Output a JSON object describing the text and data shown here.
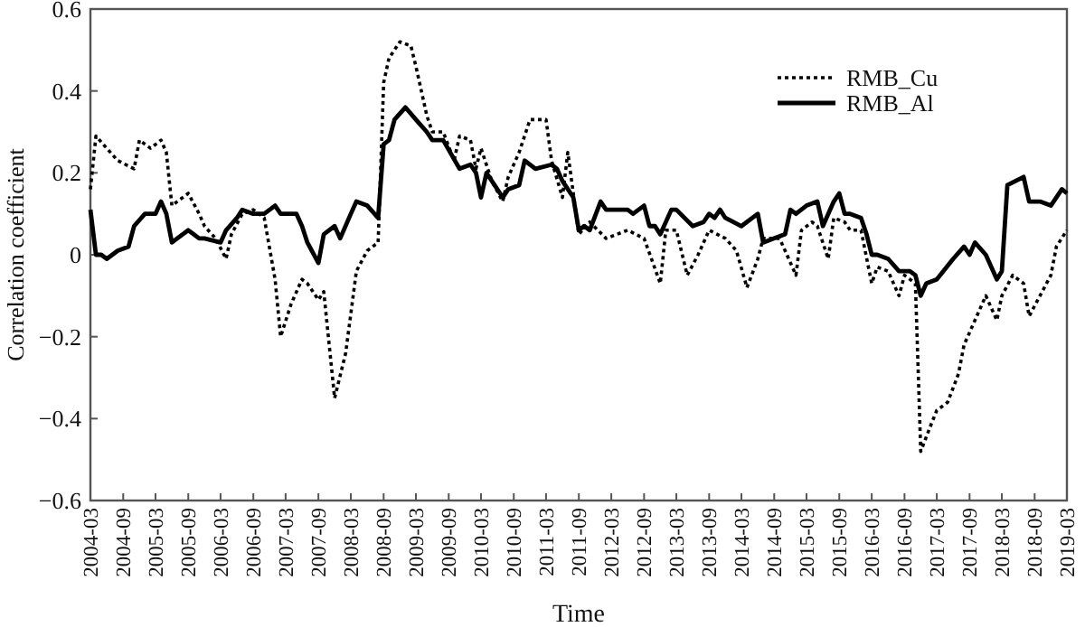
{
  "chart_data": {
    "type": "line",
    "xlabel": "Time",
    "ylabel": "Correlation coefficient",
    "xlim": [
      "2004-03",
      "2019-03"
    ],
    "ylim": [
      -0.6,
      0.6
    ],
    "xticks": [
      "2004-03",
      "2004-09",
      "2005-03",
      "2005-09",
      "2006-03",
      "2006-09",
      "2007-03",
      "2007-09",
      "2008-03",
      "2008-09",
      "2009-03",
      "2009-09",
      "2010-03",
      "2010-09",
      "2011-03",
      "2011-09",
      "2012-03",
      "2012-09",
      "2013-03",
      "2013-09",
      "2014-03",
      "2014-09",
      "2015-03",
      "2015-09",
      "2016-03",
      "2016-09",
      "2017-03",
      "2017-09",
      "2018-03",
      "2018-09",
      "2019-03"
    ],
    "yticks": [
      {
        "value": -0.6,
        "label": "−0.6"
      },
      {
        "value": -0.4,
        "label": "−0.4"
      },
      {
        "value": -0.2,
        "label": "−0.2"
      },
      0,
      0.2,
      0.4,
      0.6
    ],
    "grid": false,
    "legend": "top right",
    "marker": "none",
    "series": [
      {
        "name": "RMB_Cu",
        "color": "#000000",
        "line_style": "dotted",
        "x": [
          "2004-03",
          "2004-04",
          "2004-06",
          "2004-08",
          "2004-11",
          "2004-12",
          "2005-02",
          "2005-04",
          "2005-05",
          "2005-06",
          "2005-07",
          "2005-09",
          "2005-11",
          "2005-12",
          "2006-02",
          "2006-04",
          "2006-05",
          "2006-07",
          "2006-09",
          "2006-11",
          "2007-01",
          "2007-02",
          "2007-04",
          "2007-06",
          "2007-07",
          "2007-09",
          "2007-10",
          "2007-12",
          "2008-02",
          "2008-04",
          "2008-06",
          "2008-08",
          "2008-09",
          "2008-10",
          "2008-12",
          "2009-02",
          "2009-03",
          "2009-05",
          "2009-06",
          "2009-08",
          "2009-10",
          "2009-11",
          "2010-01",
          "2010-02",
          "2010-03",
          "2010-05",
          "2010-07",
          "2010-08",
          "2010-10",
          "2010-12",
          "2011-03",
          "2011-04",
          "2011-06",
          "2011-07",
          "2011-08",
          "2011-09",
          "2011-11",
          "2012-02",
          "2012-06",
          "2012-09",
          "2012-12",
          "2013-01",
          "2013-03",
          "2013-05",
          "2013-07",
          "2013-09",
          "2013-12",
          "2014-02",
          "2014-04",
          "2014-06",
          "2014-07",
          "2014-10",
          "2014-11",
          "2015-01",
          "2015-02",
          "2015-04",
          "2015-05",
          "2015-07",
          "2015-08",
          "2015-10",
          "2015-11",
          "2016-01",
          "2016-03",
          "2016-04",
          "2016-06",
          "2016-08",
          "2016-09",
          "2016-11",
          "2016-12",
          "2017-02",
          "2017-03",
          "2017-05",
          "2017-07",
          "2017-08",
          "2017-10",
          "2017-12",
          "2018-02",
          "2018-03",
          "2018-05",
          "2018-07",
          "2018-08",
          "2018-10",
          "2018-12",
          "2019-01",
          "2019-03"
        ],
        "values": [
          0.16,
          0.29,
          0.26,
          0.23,
          0.21,
          0.28,
          0.26,
          0.28,
          0.25,
          0.12,
          0.13,
          0.15,
          0.1,
          0.07,
          0.04,
          -0.01,
          0.05,
          0.1,
          0.11,
          0.09,
          -0.06,
          -0.2,
          -0.12,
          -0.06,
          -0.07,
          -0.11,
          -0.09,
          -0.35,
          -0.24,
          -0.04,
          0.01,
          0.03,
          0.42,
          0.48,
          0.52,
          0.51,
          0.46,
          0.34,
          0.3,
          0.3,
          0.23,
          0.29,
          0.28,
          0.21,
          0.26,
          0.18,
          0.13,
          0.19,
          0.25,
          0.33,
          0.33,
          0.23,
          0.14,
          0.25,
          0.15,
          0.05,
          0.08,
          0.04,
          0.06,
          0.04,
          -0.07,
          0.06,
          0.06,
          -0.05,
          0.0,
          0.06,
          0.04,
          0.01,
          -0.08,
          -0.01,
          0.04,
          0.04,
          0.01,
          -0.05,
          0.06,
          0.08,
          0.07,
          -0.01,
          0.09,
          0.08,
          0.06,
          0.06,
          -0.07,
          -0.03,
          -0.04,
          -0.1,
          -0.05,
          -0.07,
          -0.48,
          -0.41,
          -0.38,
          -0.36,
          -0.29,
          -0.22,
          -0.16,
          -0.1,
          -0.16,
          -0.1,
          -0.05,
          -0.07,
          -0.15,
          -0.1,
          -0.05,
          0.02,
          0.06
        ]
      },
      {
        "name": "RMB_Al",
        "color": "#000000",
        "line_style": "solid",
        "x": [
          "2004-03",
          "2004-04",
          "2004-05",
          "2004-06",
          "2004-08",
          "2004-10",
          "2004-11",
          "2005-01",
          "2005-03",
          "2005-04",
          "2005-05",
          "2005-06",
          "2005-07",
          "2005-09",
          "2005-11",
          "2005-12",
          "2006-03",
          "2006-04",
          "2006-06",
          "2006-07",
          "2006-09",
          "2006-11",
          "2007-01",
          "2007-02",
          "2007-05",
          "2007-06",
          "2007-07",
          "2007-09",
          "2007-10",
          "2007-12",
          "2008-01",
          "2008-03",
          "2008-04",
          "2008-06",
          "2008-08",
          "2008-09",
          "2008-10",
          "2008-11",
          "2009-01",
          "2009-03",
          "2009-05",
          "2009-06",
          "2009-08",
          "2009-11",
          "2010-01",
          "2010-02",
          "2010-03",
          "2010-04",
          "2010-07",
          "2010-08",
          "2010-10",
          "2010-11",
          "2011-01",
          "2011-04",
          "2011-05",
          "2011-06",
          "2011-08",
          "2011-09",
          "2011-10",
          "2011-11",
          "2012-01",
          "2012-02",
          "2012-06",
          "2012-07",
          "2012-09",
          "2012-10",
          "2012-11",
          "2012-12",
          "2013-02",
          "2013-03",
          "2013-06",
          "2013-08",
          "2013-09",
          "2013-10",
          "2013-11",
          "2013-12",
          "2014-03",
          "2014-06",
          "2014-07",
          "2014-09",
          "2014-11",
          "2014-12",
          "2015-01",
          "2015-03",
          "2015-05",
          "2015-06",
          "2015-08",
          "2015-09",
          "2015-10",
          "2015-11",
          "2016-01",
          "2016-02",
          "2016-03",
          "2016-04",
          "2016-06",
          "2016-08",
          "2016-10",
          "2016-11",
          "2016-12",
          "2017-01",
          "2017-03",
          "2017-06",
          "2017-08",
          "2017-09",
          "2017-10",
          "2017-12",
          "2018-02",
          "2018-03",
          "2018-04",
          "2018-07",
          "2018-08",
          "2018-10",
          "2018-12",
          "2019-02",
          "2019-03"
        ],
        "values": [
          0.11,
          0.0,
          0.0,
          -0.01,
          0.01,
          0.02,
          0.07,
          0.1,
          0.1,
          0.13,
          0.1,
          0.03,
          0.04,
          0.06,
          0.04,
          0.04,
          0.03,
          0.06,
          0.09,
          0.11,
          0.1,
          0.1,
          0.12,
          0.1,
          0.1,
          0.07,
          0.03,
          -0.02,
          0.05,
          0.07,
          0.04,
          0.1,
          0.13,
          0.12,
          0.09,
          0.27,
          0.28,
          0.33,
          0.36,
          0.33,
          0.3,
          0.28,
          0.28,
          0.21,
          0.22,
          0.2,
          0.14,
          0.2,
          0.14,
          0.16,
          0.17,
          0.23,
          0.21,
          0.22,
          0.21,
          0.18,
          0.14,
          0.06,
          0.07,
          0.06,
          0.13,
          0.11,
          0.11,
          0.1,
          0.12,
          0.07,
          0.07,
          0.05,
          0.11,
          0.11,
          0.07,
          0.08,
          0.1,
          0.09,
          0.11,
          0.09,
          0.07,
          0.1,
          0.03,
          0.04,
          0.05,
          0.11,
          0.1,
          0.12,
          0.13,
          0.07,
          0.13,
          0.15,
          0.1,
          0.1,
          0.09,
          0.05,
          0.0,
          0.0,
          -0.01,
          -0.04,
          -0.04,
          -0.05,
          -0.1,
          -0.07,
          -0.06,
          -0.01,
          0.02,
          0.0,
          0.03,
          0.0,
          -0.06,
          -0.04,
          0.17,
          0.19,
          0.13,
          0.13,
          0.12,
          0.16,
          0.15
        ]
      }
    ]
  }
}
